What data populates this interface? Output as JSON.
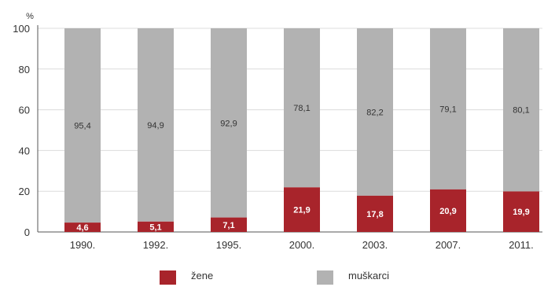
{
  "chart_data": {
    "type": "bar",
    "stacked": true,
    "unit_label": "%",
    "categories": [
      "1990.",
      "1992.",
      "1995.",
      "2000.",
      "2003.",
      "2007.",
      "2011."
    ],
    "series": [
      {
        "name": "žene",
        "color": "#a8242b",
        "values": [
          4.6,
          5.1,
          7.1,
          21.9,
          17.8,
          20.9,
          19.9
        ],
        "labels": [
          "4,6",
          "5,1",
          "7,1",
          "21,9",
          "17,8",
          "20,9",
          "19,9"
        ]
      },
      {
        "name": "muškarci",
        "color": "#b2b2b2",
        "values": [
          95.4,
          94.9,
          92.9,
          78.1,
          82.2,
          79.1,
          80.1
        ],
        "labels": [
          "95,4",
          "94,9",
          "92,9",
          "78,1",
          "82,2",
          "79,1",
          "80,1"
        ]
      }
    ],
    "y_ticks": [
      "0",
      "20",
      "40",
      "60",
      "80",
      "100"
    ],
    "ylim": [
      0,
      100
    ],
    "grid": true,
    "legend_position": "bottom"
  }
}
